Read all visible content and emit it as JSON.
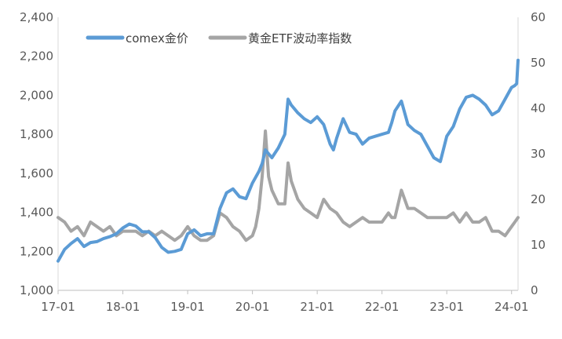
{
  "chart_data": {
    "type": "line",
    "title": "",
    "xlabel": "",
    "ylabel": "",
    "y2label": "",
    "x_ticks": [
      "17-01",
      "18-01",
      "19-01",
      "20-01",
      "21-01",
      "22-01",
      "23-01",
      "24-01"
    ],
    "y_ticks": [
      "1,000",
      "1,200",
      "1,400",
      "1,600",
      "1,800",
      "2,000",
      "2,200",
      "2,400"
    ],
    "y2_ticks": [
      "0",
      "10",
      "20",
      "30",
      "40",
      "50",
      "60"
    ],
    "ylim": [
      1000,
      2400
    ],
    "y2lim": [
      0,
      60
    ],
    "xlim": [
      2017.0,
      2024.1
    ],
    "grid": false,
    "legend": "top-left",
    "series": [
      {
        "name": "comex金价",
        "axis": "left",
        "color": "#5b9bd5",
        "x": [
          2017.0,
          2017.1,
          2017.2,
          2017.3,
          2017.4,
          2017.5,
          2017.6,
          2017.7,
          2017.8,
          2017.9,
          2018.0,
          2018.1,
          2018.2,
          2018.3,
          2018.4,
          2018.5,
          2018.6,
          2018.7,
          2018.8,
          2018.9,
          2019.0,
          2019.1,
          2019.2,
          2019.3,
          2019.4,
          2019.5,
          2019.6,
          2019.7,
          2019.8,
          2019.9,
          2020.0,
          2020.1,
          2020.15,
          2020.2,
          2020.25,
          2020.3,
          2020.4,
          2020.5,
          2020.55,
          2020.6,
          2020.7,
          2020.8,
          2020.9,
          2021.0,
          2021.1,
          2021.2,
          2021.25,
          2021.3,
          2021.4,
          2021.5,
          2021.6,
          2021.7,
          2021.8,
          2021.9,
          2022.0,
          2022.1,
          2022.15,
          2022.2,
          2022.3,
          2022.4,
          2022.5,
          2022.6,
          2022.7,
          2022.8,
          2022.9,
          2023.0,
          2023.1,
          2023.2,
          2023.3,
          2023.4,
          2023.5,
          2023.6,
          2023.7,
          2023.8,
          2023.9,
          2024.0,
          2024.05,
          2024.08,
          2024.1
        ],
        "values": [
          1150,
          1210,
          1240,
          1265,
          1225,
          1245,
          1250,
          1265,
          1275,
          1290,
          1320,
          1340,
          1330,
          1300,
          1300,
          1270,
          1220,
          1195,
          1200,
          1210,
          1290,
          1310,
          1280,
          1290,
          1290,
          1420,
          1500,
          1520,
          1480,
          1470,
          1550,
          1610,
          1650,
          1720,
          1700,
          1680,
          1730,
          1800,
          1980,
          1950,
          1910,
          1880,
          1860,
          1890,
          1850,
          1750,
          1720,
          1780,
          1880,
          1810,
          1800,
          1750,
          1780,
          1790,
          1800,
          1810,
          1860,
          1920,
          1970,
          1850,
          1820,
          1800,
          1740,
          1680,
          1660,
          1790,
          1840,
          1930,
          1990,
          2000,
          1980,
          1950,
          1900,
          1920,
          1980,
          2040,
          2050,
          2060,
          2180
        ]
      },
      {
        "name": "黄金ETF波动率指数",
        "axis": "right",
        "color": "#a5a5a5",
        "x": [
          2017.0,
          2017.1,
          2017.2,
          2017.3,
          2017.4,
          2017.5,
          2017.6,
          2017.7,
          2017.8,
          2017.9,
          2018.0,
          2018.1,
          2018.2,
          2018.3,
          2018.4,
          2018.5,
          2018.6,
          2018.7,
          2018.8,
          2018.9,
          2019.0,
          2019.1,
          2019.2,
          2019.3,
          2019.4,
          2019.5,
          2019.6,
          2019.7,
          2019.8,
          2019.9,
          2020.0,
          2020.05,
          2020.1,
          2020.15,
          2020.2,
          2020.25,
          2020.3,
          2020.4,
          2020.5,
          2020.55,
          2020.6,
          2020.7,
          2020.8,
          2020.9,
          2021.0,
          2021.1,
          2021.2,
          2021.3,
          2021.4,
          2021.5,
          2021.6,
          2021.7,
          2021.8,
          2021.9,
          2022.0,
          2022.05,
          2022.1,
          2022.15,
          2022.2,
          2022.3,
          2022.4,
          2022.5,
          2022.6,
          2022.7,
          2022.8,
          2022.9,
          2023.0,
          2023.1,
          2023.2,
          2023.3,
          2023.4,
          2023.5,
          2023.6,
          2023.7,
          2023.8,
          2023.9,
          2024.0,
          2024.05,
          2024.1
        ],
        "values": [
          16,
          15,
          13,
          14,
          12,
          15,
          14,
          13,
          14,
          12,
          13,
          13,
          13,
          12,
          13,
          12,
          13,
          12,
          11,
          12,
          14,
          12,
          11,
          11,
          12,
          17,
          16,
          14,
          13,
          11,
          12,
          14,
          18,
          25,
          35,
          25,
          22,
          19,
          19,
          28,
          24,
          20,
          18,
          17,
          16,
          20,
          18,
          17,
          15,
          14,
          15,
          16,
          15,
          15,
          15,
          16,
          17,
          16,
          16,
          22,
          18,
          18,
          17,
          16,
          16,
          16,
          16,
          17,
          15,
          17,
          15,
          15,
          16,
          13,
          13,
          12,
          14,
          15,
          16
        ]
      }
    ]
  }
}
